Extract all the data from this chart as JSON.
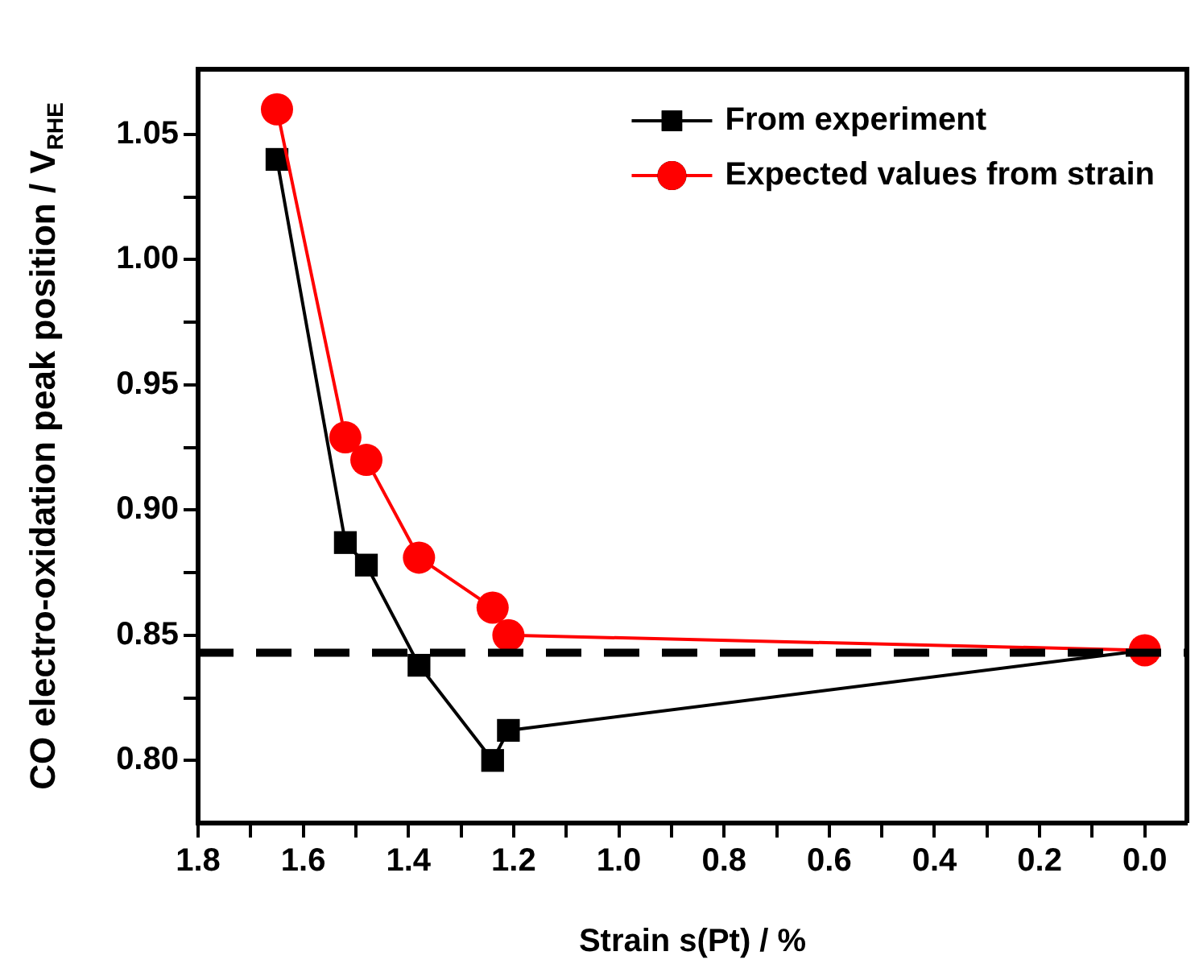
{
  "chart_data": {
    "type": "line",
    "xlabel": "Strain s(Pt) / %",
    "ylabel": "CO electro-oxidation peak position / V$_{RHE}$",
    "xlim": [
      1.8,
      -0.08
    ],
    "xticks": [
      1.8,
      {
        "value": 1.7,
        "label": null
      },
      1.6,
      {
        "value": 1.5,
        "label": null
      },
      1.4,
      {
        "value": 1.3,
        "label": null
      },
      1.2,
      {
        "value": 1.1,
        "label": null
      },
      {
        "value": 1.0,
        "label": "1.0"
      },
      {
        "value": 0.9,
        "label": null
      },
      0.8,
      {
        "value": 0.7,
        "label": null
      },
      0.6,
      {
        "value": 0.5,
        "label": null
      },
      0.4,
      {
        "value": 0.3,
        "label": null
      },
      0.2,
      {
        "value": 0.1,
        "label": null
      },
      {
        "value": 0,
        "label": "0.0"
      }
    ],
    "ylim": [
      0.775,
      1.076
    ],
    "yticks": [
      {
        "value": 0.8,
        "label": "0.80"
      },
      {
        "value": 0.825,
        "label": null
      },
      0.85,
      {
        "value": 0.875,
        "label": null
      },
      {
        "value": 0.9,
        "label": "0.90"
      },
      {
        "value": 0.925,
        "label": null
      },
      0.95,
      {
        "value": 0.975,
        "label": null
      },
      {
        "value": 1.0,
        "label": "1.00"
      },
      {
        "value": 1.025,
        "label": null
      },
      1.05
    ],
    "legend": "top right",
    "series": [
      {
        "name": "From experiment",
        "color": "#000000",
        "marker": "square",
        "x": [
          1.65,
          1.52,
          1.48,
          1.38,
          1.24,
          1.21,
          0
        ],
        "values": [
          1.04,
          0.887,
          0.878,
          0.838,
          0.8,
          0.812,
          0.844
        ]
      },
      {
        "name": "Expected values from strain",
        "color": "#ff0000",
        "marker": "circle",
        "x": [
          1.65,
          1.52,
          1.48,
          1.38,
          1.24,
          1.21,
          0
        ],
        "values": [
          1.06,
          0.929,
          0.92,
          0.881,
          0.861,
          0.85,
          0.844
        ]
      }
    ],
    "ref_lines": [
      {
        "axis": "y",
        "value": 0.843,
        "color": "#000000",
        "line_style": "dashed"
      }
    ]
  }
}
